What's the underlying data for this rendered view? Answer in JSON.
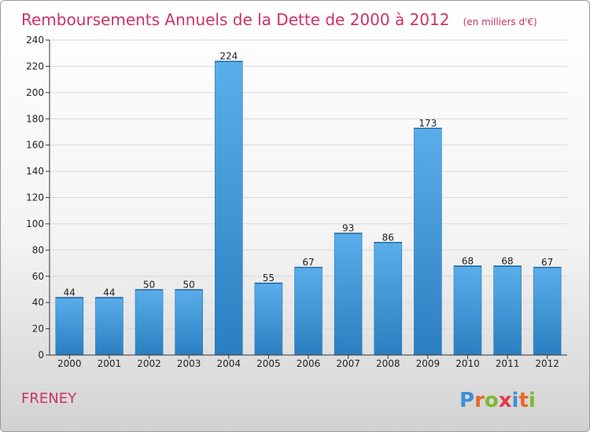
{
  "page": {
    "commune": "FRENEY",
    "logo_text": "Proxiti"
  },
  "colors": {
    "title": "#cc3366",
    "bar_light": "#5aaeea",
    "bar_dark": "#2b7fc0",
    "axis": "#333333",
    "grid": "#d8d8d8"
  },
  "chart_data": {
    "type": "bar",
    "title": "Remboursements Annuels de la Dette de 2000 à 2012",
    "unit": "(en milliers d'€)",
    "categories": [
      "2000",
      "2001",
      "2002",
      "2003",
      "2004",
      "2005",
      "2006",
      "2007",
      "2008",
      "2009",
      "2010",
      "2011",
      "2012"
    ],
    "values": [
      44,
      44,
      50,
      50,
      224,
      55,
      67,
      93,
      86,
      173,
      68,
      68,
      67
    ],
    "xlabel": "",
    "ylabel": "",
    "ylim": [
      0,
      240
    ],
    "yticks": [
      0,
      20,
      40,
      60,
      80,
      100,
      120,
      140,
      160,
      180,
      200,
      220,
      240
    ],
    "grid": true,
    "legend": "none"
  }
}
